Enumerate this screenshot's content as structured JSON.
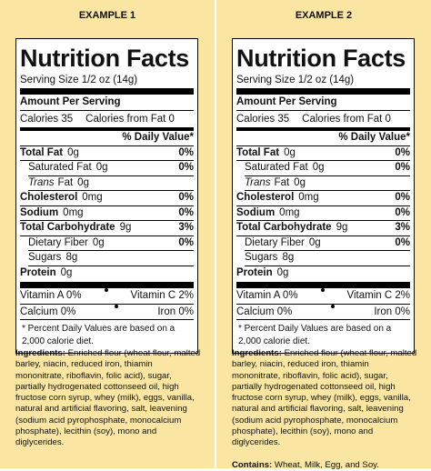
{
  "examples": [
    {
      "title": "EXAMPLE 1",
      "label": {
        "heading": "Nutrition Facts",
        "serving_size": "Serving Size  1/2 oz  (14g)",
        "amount_per_serving": "Amount Per Serving",
        "calories": "Calories  35",
        "calories_from_fat": "Calories from Fat 0",
        "daily_value_header": "% Daily Value*",
        "nutrients": [
          {
            "name": "Total Fat",
            "amount": "0g",
            "dv": "0%",
            "level": "main"
          },
          {
            "name": "Saturated Fat",
            "amount": "0g",
            "dv": "0%",
            "level": "sub"
          },
          {
            "prefix": "Trans",
            "name": "Fat",
            "amount": "0g",
            "level": "sub"
          },
          {
            "name": "Cholesterol",
            "amount": "0mg",
            "dv": "0%",
            "level": "main"
          },
          {
            "name": "Sodium",
            "amount": "0mg",
            "dv": "0%",
            "level": "main"
          },
          {
            "name": "Total Carbohydrate",
            "amount": "9g",
            "dv": "3%",
            "level": "main"
          },
          {
            "name": "Dietary Fiber",
            "amount": "0g",
            "dv": "0%",
            "level": "sub"
          },
          {
            "name": "Sugars",
            "amount": "8g",
            "level": "sub"
          },
          {
            "name": "Protein",
            "amount": "0g",
            "level": "main"
          }
        ],
        "vitamins": [
          [
            "Vitamin A 0%",
            "Vitamin C 2%"
          ],
          [
            "Calcium 0%",
            "Iron 0%"
          ]
        ],
        "footnote": "* Percent Daily Values are based on a 2,000 calorie diet."
      },
      "ingredients_label": "Ingredients:",
      "ingredients": "Enriched flour (wheat flour, malted barley, niacin, reduced iron, thiamin mononitrate, riboflavin, folic acid), sugar, partially hydrogenated cottonseed oil, high fructose corn syrup, whey (milk), eggs, vanilla, natural and artificial flavoring, salt, leavening (sodium acid pyrophosphate, monocalcium phosphate), lecithin (soy), mono and diglycerides."
    },
    {
      "title": "EXAMPLE 2",
      "label": {
        "heading": "Nutrition Facts",
        "serving_size": "Serving Size  1/2 oz  (14g)",
        "amount_per_serving": "Amount Per Serving",
        "calories": "Calories  35",
        "calories_from_fat": "Calories from Fat 0",
        "daily_value_header": "% Daily Value*",
        "nutrients": [
          {
            "name": "Total Fat",
            "amount": "0g",
            "dv": "0%",
            "level": "main"
          },
          {
            "name": "Saturated Fat",
            "amount": "0g",
            "dv": "0%",
            "level": "sub"
          },
          {
            "prefix": "Trans",
            "name": "Fat",
            "amount": "0g",
            "level": "sub"
          },
          {
            "name": "Cholesterol",
            "amount": "0mg",
            "dv": "0%",
            "level": "main"
          },
          {
            "name": "Sodium",
            "amount": "0mg",
            "dv": "0%",
            "level": "main"
          },
          {
            "name": "Total Carbohydrate",
            "amount": "9g",
            "dv": "3%",
            "level": "main"
          },
          {
            "name": "Dietary Fiber",
            "amount": "0g",
            "dv": "0%",
            "level": "sub"
          },
          {
            "name": "Sugars",
            "amount": "8g",
            "level": "sub"
          },
          {
            "name": "Protein",
            "amount": "0g",
            "level": "main"
          }
        ],
        "vitamins": [
          [
            "Vitamin A 0%",
            "Vitamin C 2%"
          ],
          [
            "Calcium 0%",
            "Iron 0%"
          ]
        ],
        "footnote": "* Percent Daily Values are based on a 2,000 calorie diet."
      },
      "ingredients_label": "Ingredients:",
      "ingredients": "Enriched flour (wheat flour, malted barley, niacin, reduced iron, thiamin mononitrate, riboflavin, folic acid), sugar, partially hydrogenated cottonseed oil, high fructose corn syrup, whey (milk), eggs, vanilla, natural and artificial flavoring, salt, leavening (sodium acid pyrophosphate, monocalcium phosphate), lecithin (soy), mono and diglycerides.",
      "contains_label": "Contains:",
      "contains": "Wheat, Milk, Egg, and Soy."
    }
  ]
}
